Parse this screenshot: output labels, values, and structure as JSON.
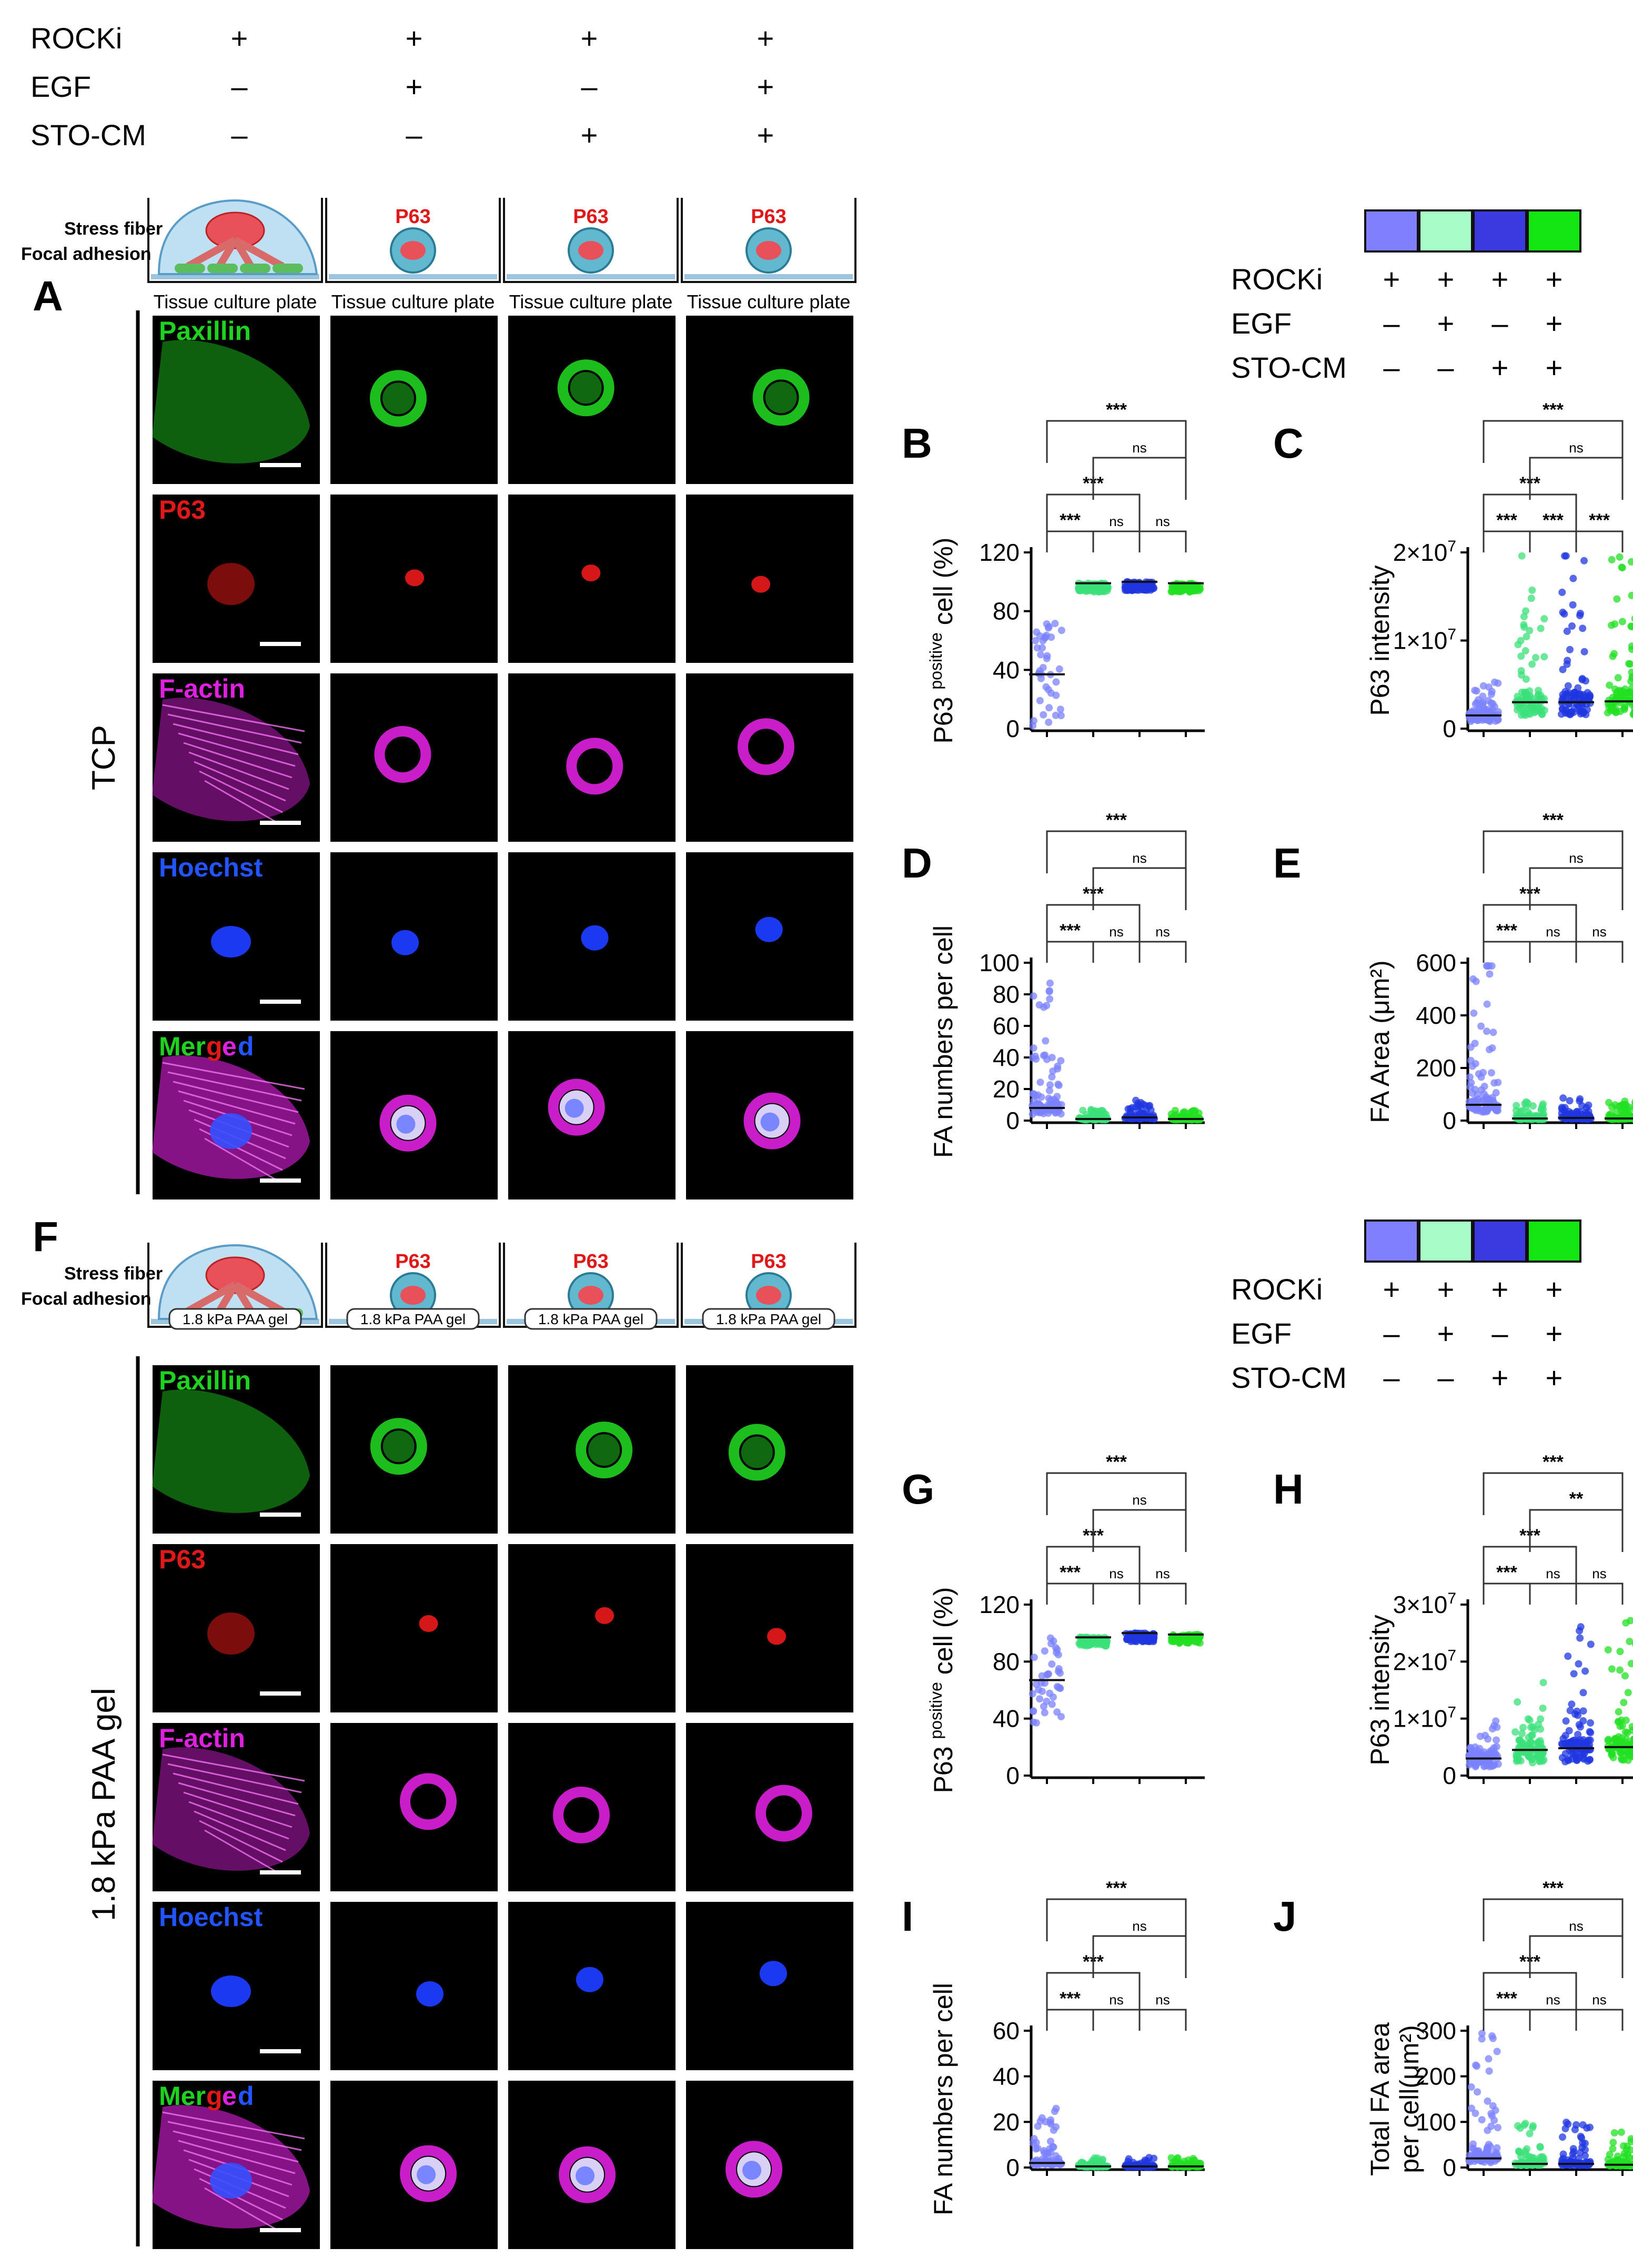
{
  "conditions": {
    "rows": [
      {
        "label": "ROCKi",
        "values": [
          "+",
          "+",
          "+",
          "+"
        ]
      },
      {
        "label": "EGF",
        "values": [
          "–",
          "+",
          "–",
          "+"
        ]
      },
      {
        "label": "STO-CM",
        "values": [
          "–",
          "–",
          "+",
          "+"
        ]
      }
    ]
  },
  "legend": {
    "colors": [
      "#8080ff",
      "#a8fcc8",
      "#3a3ae0",
      "#14e614"
    ],
    "rows": [
      {
        "label": "ROCKi",
        "values": [
          "+",
          "+",
          "+",
          "+"
        ]
      },
      {
        "label": "EGF",
        "values": [
          "–",
          "+",
          "–",
          "+"
        ]
      },
      {
        "label": "STO-CM",
        "values": [
          "–",
          "–",
          "+",
          "+"
        ]
      }
    ]
  },
  "schematic": {
    "stress_fiber": "Stress fiber",
    "focal_adhesion": "Focal adhesion",
    "paxillin_word": "Paxillin",
    "p63": "P63",
    "tcp_substrate": "Tissue culture plate",
    "gel_substrate": "1.8 kPa PAA gel"
  },
  "panels": {
    "A": "A",
    "B": "B",
    "C": "C",
    "D": "D",
    "E": "E",
    "F": "F",
    "G": "G",
    "H": "H",
    "I": "I",
    "J": "J"
  },
  "conditions_side_labels": {
    "tcp": "TCP",
    "gel": "1.8 kPa PAA gel"
  },
  "channels": [
    {
      "key": "paxillin",
      "label": "Paxillin",
      "color": "#1fd21f"
    },
    {
      "key": "p63",
      "label": "P63",
      "color": "#e01818"
    },
    {
      "key": "factin",
      "label": "F-actin",
      "color": "#e020e0"
    },
    {
      "key": "hoechst",
      "label": "Hoechst",
      "color": "#2255ff"
    },
    {
      "key": "merged",
      "label": "Merged",
      "color": "#1fd21f"
    }
  ],
  "merged_letters": [
    {
      "t": "Mer",
      "c": "#1fd21f"
    },
    {
      "t": "g",
      "c": "#e01818"
    },
    {
      "t": "e",
      "c": "#e020e0"
    },
    {
      "t": "d",
      "c": "#2255ff"
    }
  ],
  "significance": {
    "three": "***",
    "two": "**",
    "ns": "ns"
  },
  "chart_data": [
    {
      "panel": "B",
      "type": "scatter",
      "ylabel_main": "P63 ",
      "ylabel_sup": "positive",
      "ylabel_end": " cell (%)",
      "ylim": [
        0,
        120
      ],
      "yticks": [
        "0",
        "40",
        "80",
        "120"
      ],
      "groups": [
        "ROCKi",
        "ROCKi+EGF",
        "ROCKi+STO-CM",
        "ROCKi+EGF+STO-CM"
      ],
      "means": [
        37,
        99,
        100,
        99
      ],
      "comparisons": [
        {
          "pair": [
            1,
            2
          ],
          "label": "***"
        },
        {
          "pair": [
            2,
            3
          ],
          "label": "ns"
        },
        {
          "pair": [
            3,
            4
          ],
          "label": "ns"
        },
        {
          "pair": [
            1,
            3
          ],
          "label": "***"
        },
        {
          "pair": [
            2,
            4
          ],
          "label": "ns"
        },
        {
          "pair": [
            1,
            4
          ],
          "label": "***"
        }
      ]
    },
    {
      "panel": "C",
      "type": "scatter",
      "ylabel_main": "P63 intensity",
      "ylim": [
        0,
        20000000
      ],
      "yticks": [
        "0",
        "1×10",
        "2×10"
      ],
      "ytick_exp": "7",
      "groups": [
        "ROCKi",
        "ROCKi+EGF",
        "ROCKi+STO-CM",
        "ROCKi+EGF+STO-CM"
      ],
      "means": [
        1500000,
        3000000,
        3000000,
        3100000
      ],
      "comparisons": [
        {
          "pair": [
            1,
            2
          ],
          "label": "***"
        },
        {
          "pair": [
            2,
            3
          ],
          "label": "***"
        },
        {
          "pair": [
            3,
            4
          ],
          "label": "***"
        },
        {
          "pair": [
            1,
            3
          ],
          "label": "***"
        },
        {
          "pair": [
            2,
            4
          ],
          "label": "ns"
        },
        {
          "pair": [
            1,
            4
          ],
          "label": "***"
        }
      ]
    },
    {
      "panel": "D",
      "type": "scatter",
      "ylabel_main": "FA numbers per cell",
      "ylim": [
        0,
        100
      ],
      "yticks": [
        "0",
        "20",
        "40",
        "60",
        "80",
        "100"
      ],
      "groups": [
        "ROCKi",
        "ROCKi+EGF",
        "ROCKi+STO-CM",
        "ROCKi+EGF+STO-CM"
      ],
      "means": [
        8,
        1,
        2,
        1
      ],
      "comparisons": [
        {
          "pair": [
            1,
            2
          ],
          "label": "***"
        },
        {
          "pair": [
            2,
            3
          ],
          "label": "ns"
        },
        {
          "pair": [
            3,
            4
          ],
          "label": "ns"
        },
        {
          "pair": [
            1,
            3
          ],
          "label": "***"
        },
        {
          "pair": [
            2,
            4
          ],
          "label": "ns"
        },
        {
          "pair": [
            1,
            4
          ],
          "label": "***"
        }
      ]
    },
    {
      "panel": "E",
      "type": "scatter",
      "ylabel_main": "FA Area (μm²)",
      "ylim": [
        0,
        600
      ],
      "yticks": [
        "0",
        "200",
        "400",
        "600"
      ],
      "groups": [
        "ROCKi",
        "ROCKi+EGF",
        "ROCKi+STO-CM",
        "ROCKi+EGF+STO-CM"
      ],
      "means": [
        60,
        8,
        10,
        8
      ],
      "comparisons": [
        {
          "pair": [
            1,
            2
          ],
          "label": "***"
        },
        {
          "pair": [
            2,
            3
          ],
          "label": "ns"
        },
        {
          "pair": [
            3,
            4
          ],
          "label": "ns"
        },
        {
          "pair": [
            1,
            3
          ],
          "label": "***"
        },
        {
          "pair": [
            2,
            4
          ],
          "label": "ns"
        },
        {
          "pair": [
            1,
            4
          ],
          "label": "***"
        }
      ]
    },
    {
      "panel": "G",
      "type": "scatter",
      "ylabel_main": "P63 ",
      "ylabel_sup": "positive",
      "ylabel_end": " cell (%)",
      "ylim": [
        0,
        120
      ],
      "yticks": [
        "0",
        "40",
        "80",
        "120"
      ],
      "groups": [
        "ROCKi",
        "ROCKi+EGF",
        "ROCKi+STO-CM",
        "ROCKi+EGF+STO-CM"
      ],
      "means": [
        67,
        97,
        100,
        99
      ],
      "comparisons": [
        {
          "pair": [
            1,
            2
          ],
          "label": "***"
        },
        {
          "pair": [
            2,
            3
          ],
          "label": "ns"
        },
        {
          "pair": [
            3,
            4
          ],
          "label": "ns"
        },
        {
          "pair": [
            1,
            3
          ],
          "label": "***"
        },
        {
          "pair": [
            2,
            4
          ],
          "label": "ns"
        },
        {
          "pair": [
            1,
            4
          ],
          "label": "***"
        }
      ]
    },
    {
      "panel": "H",
      "type": "scatter",
      "ylabel_main": "P63 intensity",
      "ylim": [
        0,
        30000000
      ],
      "yticks": [
        "0",
        "1×10",
        "2×10",
        "3×10"
      ],
      "ytick_exp": "7",
      "groups": [
        "ROCKi",
        "ROCKi+EGF",
        "ROCKi+STO-CM",
        "ROCKi+EGF+STO-CM"
      ],
      "means": [
        3000000,
        4500000,
        4800000,
        5000000
      ],
      "comparisons": [
        {
          "pair": [
            1,
            2
          ],
          "label": "***"
        },
        {
          "pair": [
            2,
            3
          ],
          "label": "ns"
        },
        {
          "pair": [
            3,
            4
          ],
          "label": "ns"
        },
        {
          "pair": [
            1,
            3
          ],
          "label": "***"
        },
        {
          "pair": [
            2,
            4
          ],
          "label": "**"
        },
        {
          "pair": [
            1,
            4
          ],
          "label": "***"
        }
      ]
    },
    {
      "panel": "I",
      "type": "scatter",
      "ylabel_main": "FA numbers per cell",
      "ylim": [
        0,
        60
      ],
      "yticks": [
        "0",
        "20",
        "40",
        "60"
      ],
      "groups": [
        "ROCKi",
        "ROCKi+EGF",
        "ROCKi+STO-CM",
        "ROCKi+EGF+STO-CM"
      ],
      "means": [
        2,
        0.5,
        0.5,
        0.5
      ],
      "comparisons": [
        {
          "pair": [
            1,
            2
          ],
          "label": "***"
        },
        {
          "pair": [
            2,
            3
          ],
          "label": "ns"
        },
        {
          "pair": [
            3,
            4
          ],
          "label": "ns"
        },
        {
          "pair": [
            1,
            3
          ],
          "label": "***"
        },
        {
          "pair": [
            2,
            4
          ],
          "label": "ns"
        },
        {
          "pair": [
            1,
            4
          ],
          "label": "***"
        }
      ]
    },
    {
      "panel": "J",
      "type": "scatter",
      "ylabel_main": "Total FA area",
      "ylabel_line2": "per cell(μm²)",
      "ylim": [
        0,
        300
      ],
      "yticks": [
        "0",
        "100",
        "200",
        "300"
      ],
      "groups": [
        "ROCKi",
        "ROCKi+EGF",
        "ROCKi+STO-CM",
        "ROCKi+EGF+STO-CM"
      ],
      "means": [
        20,
        8,
        8,
        6
      ],
      "comparisons": [
        {
          "pair": [
            1,
            2
          ],
          "label": "***"
        },
        {
          "pair": [
            2,
            3
          ],
          "label": "ns"
        },
        {
          "pair": [
            3,
            4
          ],
          "label": "ns"
        },
        {
          "pair": [
            1,
            3
          ],
          "label": "***"
        },
        {
          "pair": [
            2,
            4
          ],
          "label": "ns"
        },
        {
          "pair": [
            1,
            4
          ],
          "label": "***"
        }
      ]
    }
  ]
}
